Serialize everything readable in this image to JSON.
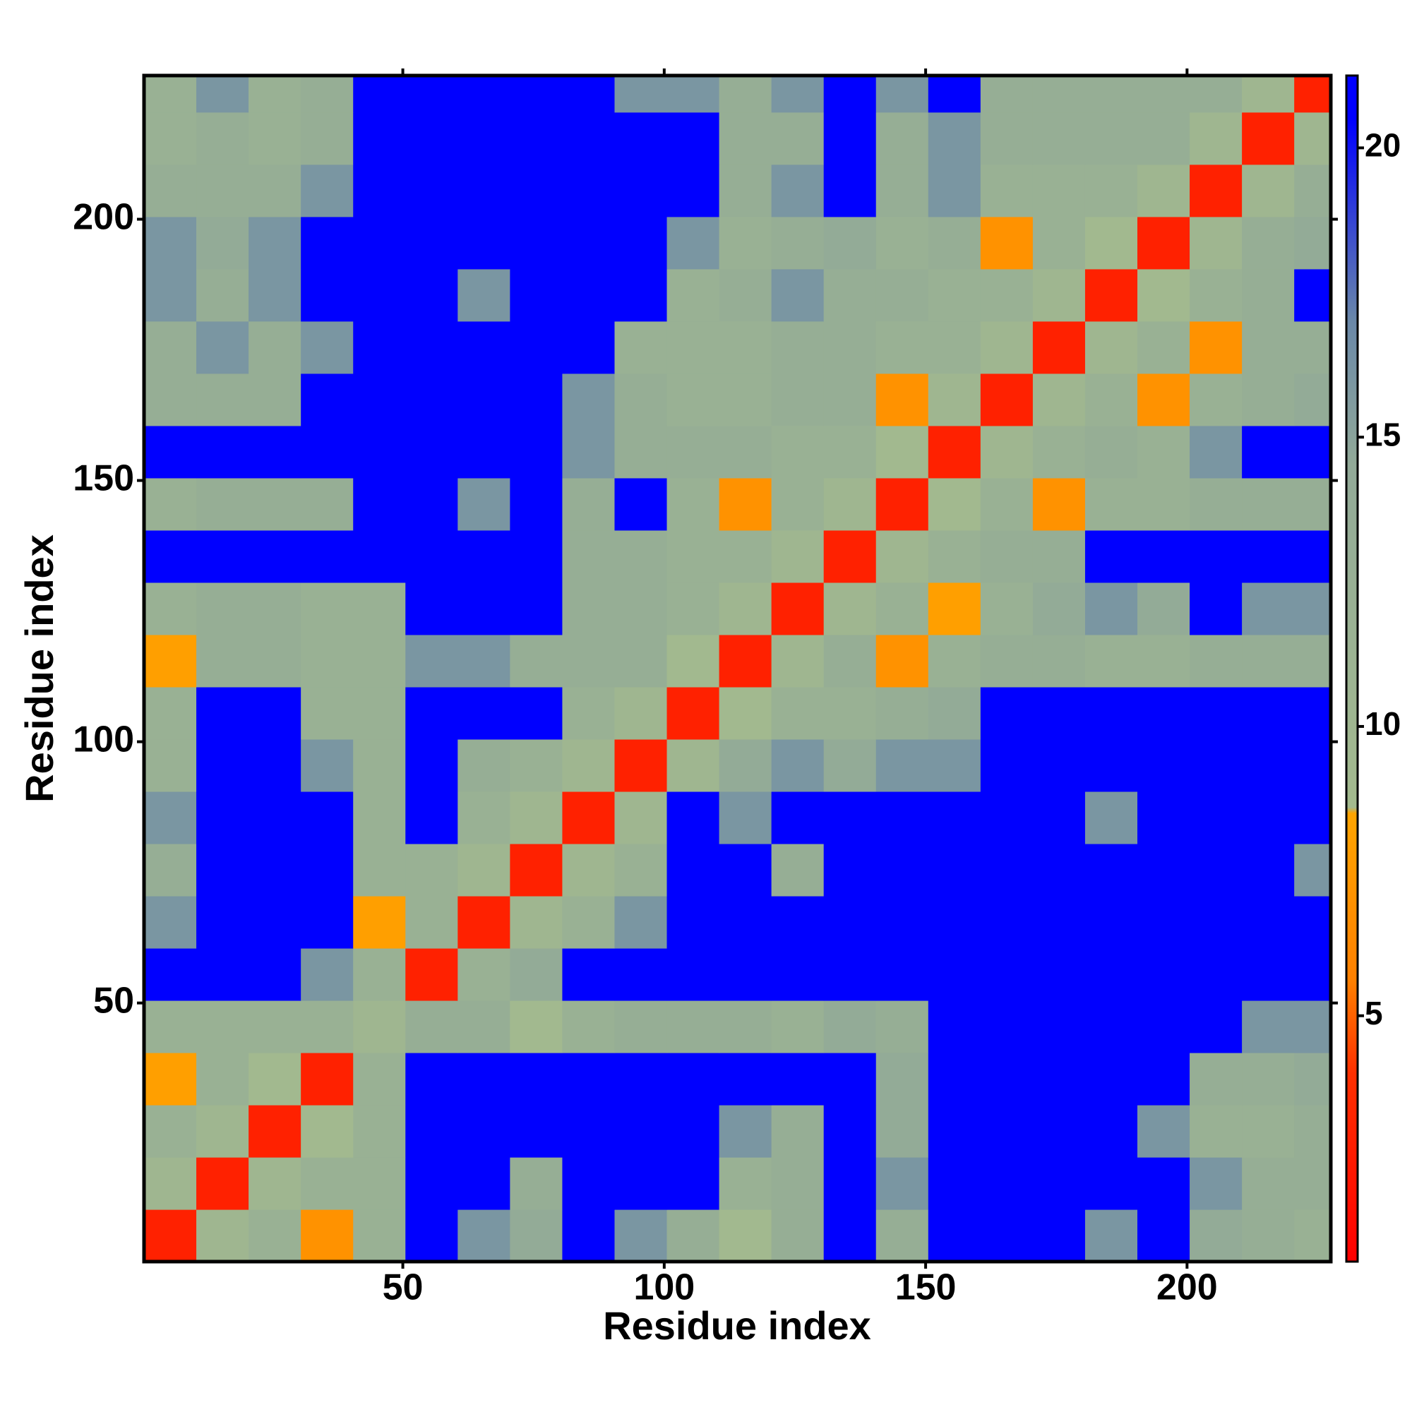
{
  "chart_data": {
    "type": "heatmap",
    "xlabel": "Residue index",
    "ylabel": "Residue index",
    "x": [
      5.5,
      15.5,
      25.5,
      35.5,
      45.5,
      55.5,
      65.5,
      75.5,
      85.5,
      95.5,
      105.5,
      115.5,
      125.5,
      135.5,
      145.5,
      155.5,
      165.5,
      175.5,
      185.5,
      195.5,
      205.5,
      215.5,
      225.5
    ],
    "y": [
      5.5,
      15.5,
      25.5,
      35.5,
      45.5,
      55.5,
      65.5,
      75.5,
      85.5,
      95.5,
      105.5,
      115.5,
      125.5,
      135.5,
      145.5,
      155.5,
      165.5,
      175.5,
      185.5,
      195.5,
      205.5,
      215.5,
      225.5
    ],
    "z": [
      [
        3,
        10,
        12,
        7,
        12,
        21,
        16,
        14,
        21,
        16,
        13,
        9,
        13,
        21,
        13,
        21,
        21,
        21,
        16,
        21,
        14,
        13,
        12
      ],
      [
        10,
        3,
        10,
        12,
        12,
        21,
        21,
        13,
        21,
        21,
        21,
        12,
        13,
        21,
        16,
        21,
        21,
        21,
        21,
        21,
        16,
        13,
        13
      ],
      [
        12,
        10,
        3,
        9,
        12,
        21,
        21,
        21,
        21,
        21,
        21,
        16,
        13,
        21,
        14,
        21,
        21,
        21,
        21,
        16,
        12,
        12,
        13
      ],
      [
        8,
        12,
        9,
        3,
        12,
        21,
        21,
        21,
        21,
        21,
        21,
        21,
        21,
        21,
        14,
        21,
        21,
        21,
        21,
        21,
        13,
        13,
        14
      ],
      [
        12,
        12,
        12,
        12,
        10,
        13,
        13,
        9,
        12,
        13,
        13,
        13,
        12,
        14,
        13,
        21,
        21,
        21,
        21,
        21,
        21,
        16,
        16
      ],
      [
        21,
        21,
        21,
        16,
        12,
        3,
        12,
        14,
        21,
        21,
        21,
        21,
        21,
        21,
        21,
        21,
        21,
        21,
        21,
        21,
        21,
        21,
        21
      ],
      [
        16,
        21,
        21,
        21,
        8,
        12,
        3,
        10,
        12,
        16,
        21,
        21,
        21,
        21,
        21,
        21,
        21,
        21,
        21,
        21,
        21,
        21,
        21
      ],
      [
        13,
        21,
        21,
        21,
        12,
        12,
        10,
        3,
        10,
        12,
        21,
        21,
        13,
        21,
        21,
        21,
        21,
        21,
        21,
        21,
        21,
        21,
        16
      ],
      [
        16,
        21,
        21,
        21,
        12,
        21,
        12,
        10,
        3,
        10,
        21,
        16,
        21,
        21,
        21,
        21,
        21,
        21,
        16,
        21,
        21,
        21,
        21
      ],
      [
        12,
        21,
        21,
        16,
        12,
        21,
        13,
        12,
        10,
        3,
        10,
        14,
        16,
        14,
        16,
        16,
        21,
        21,
        21,
        21,
        21,
        21,
        21
      ],
      [
        12,
        21,
        21,
        12,
        12,
        21,
        21,
        21,
        12,
        10,
        3,
        9,
        12,
        12,
        13,
        14,
        21,
        21,
        21,
        21,
        21,
        21,
        21
      ],
      [
        8,
        13,
        13,
        12,
        12,
        16,
        16,
        13,
        13,
        13,
        9,
        3,
        10,
        13,
        7,
        12,
        13,
        13,
        12,
        12,
        13,
        13,
        13
      ],
      [
        12,
        13,
        13,
        12,
        12,
        21,
        21,
        21,
        13,
        13,
        12,
        10,
        3,
        10,
        12,
        8,
        12,
        14,
        16,
        14,
        21,
        16,
        16
      ],
      [
        21,
        21,
        21,
        21,
        21,
        21,
        21,
        21,
        13,
        13,
        12,
        12,
        10,
        3,
        10,
        12,
        13,
        13,
        21,
        21,
        21,
        21,
        21
      ],
      [
        12,
        13,
        13,
        13,
        21,
        21,
        16,
        21,
        13,
        21,
        12,
        7,
        12,
        10,
        3,
        9,
        12,
        7,
        12,
        12,
        13,
        13,
        13
      ],
      [
        21,
        21,
        21,
        21,
        21,
        21,
        21,
        21,
        16,
        13,
        13,
        13,
        12,
        12,
        9,
        3,
        10,
        12,
        13,
        12,
        16,
        21,
        21
      ],
      [
        13,
        13,
        13,
        21,
        21,
        21,
        21,
        21,
        16,
        13,
        12,
        12,
        13,
        13,
        7,
        10,
        3,
        10,
        12,
        7,
        12,
        13,
        14
      ],
      [
        13,
        16,
        13,
        16,
        21,
        21,
        21,
        21,
        21,
        12,
        12,
        12,
        13,
        13,
        12,
        12,
        10,
        3,
        10,
        12,
        7,
        13,
        13
      ],
      [
        16,
        13,
        16,
        21,
        21,
        21,
        16,
        21,
        21,
        21,
        12,
        13,
        16,
        13,
        13,
        12,
        12,
        10,
        3,
        9,
        12,
        13,
        21
      ],
      [
        16,
        14,
        16,
        21,
        21,
        21,
        21,
        21,
        21,
        21,
        16,
        12,
        13,
        14,
        12,
        13,
        7,
        12,
        9,
        3,
        10,
        13,
        14
      ],
      [
        13,
        13,
        13,
        16,
        21,
        21,
        21,
        21,
        21,
        21,
        21,
        13,
        16,
        21,
        13,
        16,
        12,
        12,
        12,
        10,
        3,
        10,
        13
      ],
      [
        12,
        13,
        12,
        13,
        21,
        21,
        21,
        21,
        21,
        21,
        21,
        13,
        13,
        21,
        13,
        16,
        13,
        13,
        13,
        13,
        10,
        3,
        10
      ],
      [
        12,
        16,
        12,
        13,
        21,
        21,
        21,
        21,
        21,
        16,
        16,
        13,
        16,
        21,
        16,
        21,
        13,
        13,
        13,
        13,
        13,
        10,
        3
      ]
    ],
    "xlim": [
      0.5,
      227.5
    ],
    "ylim": [
      0.5,
      227.5
    ],
    "xticks": [
      50,
      100,
      150,
      200
    ],
    "yticks": [
      50,
      100,
      150,
      200
    ],
    "zlim": [
      0.75,
      21.25
    ],
    "zticks": [
      5,
      10,
      15,
      20
    ],
    "colorscale": [
      [
        0.75,
        "#ff0000"
      ],
      [
        4,
        "#ff3000"
      ],
      [
        5.6,
        "#ff8000"
      ],
      [
        8.5,
        "#ffa500"
      ],
      [
        8.6,
        "#a3ba8e"
      ],
      [
        14.5,
        "#92aa98"
      ],
      [
        17,
        "#6a88a8"
      ],
      [
        20.5,
        "#0000ff"
      ]
    ]
  }
}
